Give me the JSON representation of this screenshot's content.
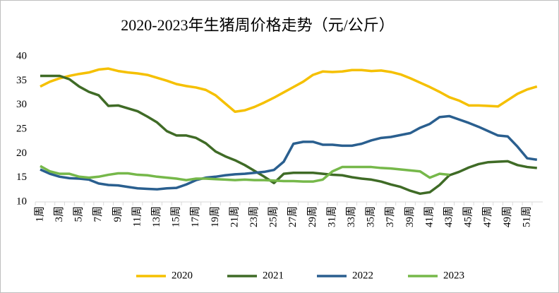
{
  "chart_data": {
    "type": "line",
    "title": "2020-2023年生猪周价格走势（元/公斤）",
    "categories": [
      "1周",
      null,
      "3周",
      null,
      "5周",
      null,
      "7周",
      null,
      "9周",
      null,
      "11周",
      null,
      "13周",
      null,
      "15周",
      null,
      "17周",
      null,
      "19周",
      null,
      "21周",
      null,
      "23周",
      null,
      "25周",
      null,
      "27周",
      null,
      "29周",
      null,
      "31周",
      null,
      "33周",
      null,
      "35周",
      null,
      "37周",
      null,
      "39周",
      null,
      "41周",
      null,
      "43周",
      null,
      "45周",
      null,
      "47周",
      null,
      "49周",
      null,
      "51周",
      null
    ],
    "series": [
      {
        "name": "2020",
        "color": "#f5c000",
        "values": [
          33.8,
          34.8,
          35.5,
          36.0,
          36.4,
          36.7,
          37.3,
          37.5,
          37.0,
          36.7,
          36.5,
          36.2,
          35.6,
          35.0,
          34.3,
          33.9,
          33.6,
          33.1,
          32.0,
          30.3,
          28.6,
          28.9,
          29.6,
          30.5,
          31.5,
          32.6,
          33.7,
          34.8,
          36.2,
          36.9,
          36.8,
          36.9,
          37.2,
          37.2,
          37.0,
          37.1,
          36.8,
          36.3,
          35.5,
          34.6,
          33.7,
          32.7,
          31.6,
          30.9,
          29.9,
          29.9,
          29.8,
          29.7,
          31.0,
          32.3,
          33.2,
          33.8
        ]
      },
      {
        "name": "2021",
        "color": "#3f6b26",
        "values": [
          36.0,
          36.0,
          36.0,
          35.3,
          33.8,
          32.7,
          32.0,
          29.8,
          29.9,
          29.3,
          28.7,
          27.6,
          26.4,
          24.6,
          23.7,
          23.7,
          23.2,
          22.1,
          20.4,
          19.4,
          18.6,
          17.6,
          16.4,
          15.2,
          13.9,
          15.8,
          16.0,
          16.0,
          16.0,
          15.8,
          15.6,
          15.5,
          15.1,
          14.8,
          14.6,
          14.2,
          13.6,
          13.1,
          12.3,
          11.7,
          12.0,
          13.5,
          15.5,
          16.2,
          17.1,
          17.8,
          18.2,
          18.3,
          18.4,
          17.6,
          17.2,
          17.0
        ]
      },
      {
        "name": "2022",
        "color": "#2a5f8f",
        "values": [
          16.7,
          15.8,
          15.2,
          14.9,
          14.8,
          14.6,
          13.8,
          13.5,
          13.4,
          13.1,
          12.8,
          12.7,
          12.6,
          12.8,
          12.9,
          13.6,
          14.5,
          15.0,
          15.2,
          15.5,
          15.7,
          15.8,
          16.0,
          16.2,
          16.6,
          18.3,
          22.0,
          22.4,
          22.4,
          21.8,
          21.8,
          21.6,
          21.6,
          22.0,
          22.7,
          23.2,
          23.4,
          23.8,
          24.2,
          25.3,
          26.1,
          27.5,
          27.7,
          27.0,
          26.3,
          25.5,
          24.6,
          23.7,
          23.5,
          21.4,
          19.0,
          18.7
        ]
      },
      {
        "name": "2023",
        "color": "#76b84a",
        "values": [
          17.4,
          16.3,
          15.8,
          15.8,
          15.2,
          15.0,
          15.2,
          15.6,
          15.9,
          15.9,
          15.6,
          15.5,
          15.2,
          15.0,
          14.8,
          14.5,
          14.8,
          14.8,
          14.7,
          14.6,
          14.5,
          14.6,
          14.5,
          14.5,
          14.4,
          14.3,
          14.3,
          14.2,
          14.2,
          14.6,
          16.3,
          17.2,
          17.2,
          17.2,
          17.2,
          17.0,
          16.9,
          16.7,
          16.5,
          16.3,
          15.0,
          15.8,
          15.6,
          null,
          null,
          null,
          null,
          null,
          null,
          null,
          null,
          null
        ]
      }
    ],
    "ylim": [
      10,
      40
    ],
    "yticks": [
      10,
      15,
      20,
      25,
      30,
      35,
      40
    ]
  }
}
